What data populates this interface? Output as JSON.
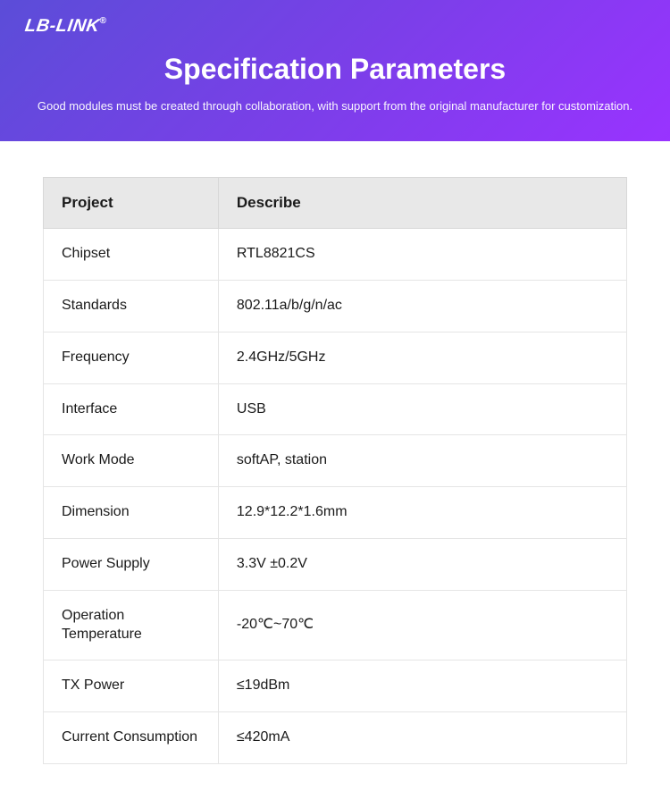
{
  "header": {
    "logo": "LB-LINK",
    "title": "Specification Parameters",
    "subtitle": "Good modules must be created through collaboration, with support from the original manufacturer for customization.",
    "colors": {
      "gradient_start": "#5b4dd8",
      "gradient_mid": "#7a3fe8",
      "gradient_end": "#9933ff",
      "text": "#ffffff"
    },
    "title_fontsize": 32,
    "subtitle_fontsize": 13
  },
  "spec_table": {
    "type": "table",
    "columns": [
      "Project",
      "Describe"
    ],
    "column_widths": [
      "30%",
      "70%"
    ],
    "header_background": "#e8e8e8",
    "border_color": "#e5e5e5",
    "cell_padding": "18px 20px",
    "font_size": 16,
    "header_font_size": 17,
    "text_color": "#1a1a1a",
    "rows": [
      {
        "project": "Chipset",
        "describe": "RTL8821CS"
      },
      {
        "project": "Standards",
        "describe": "802.11a/b/g/n/ac"
      },
      {
        "project": "Frequency",
        "describe": "2.4GHz/5GHz"
      },
      {
        "project": "Interface",
        "describe": "USB"
      },
      {
        "project": "Work Mode",
        "describe": "softAP, station"
      },
      {
        "project": "Dimension",
        "describe": "12.9*12.2*1.6mm"
      },
      {
        "project": "Power Supply",
        "describe": "3.3V ±0.2V"
      },
      {
        "project": "Operation Temperature",
        "describe": "-20℃~70℃"
      },
      {
        "project": "TX Power",
        "describe": "≤19dBm"
      },
      {
        "project": "Current Consumption",
        "describe": "≤420mA"
      }
    ]
  }
}
